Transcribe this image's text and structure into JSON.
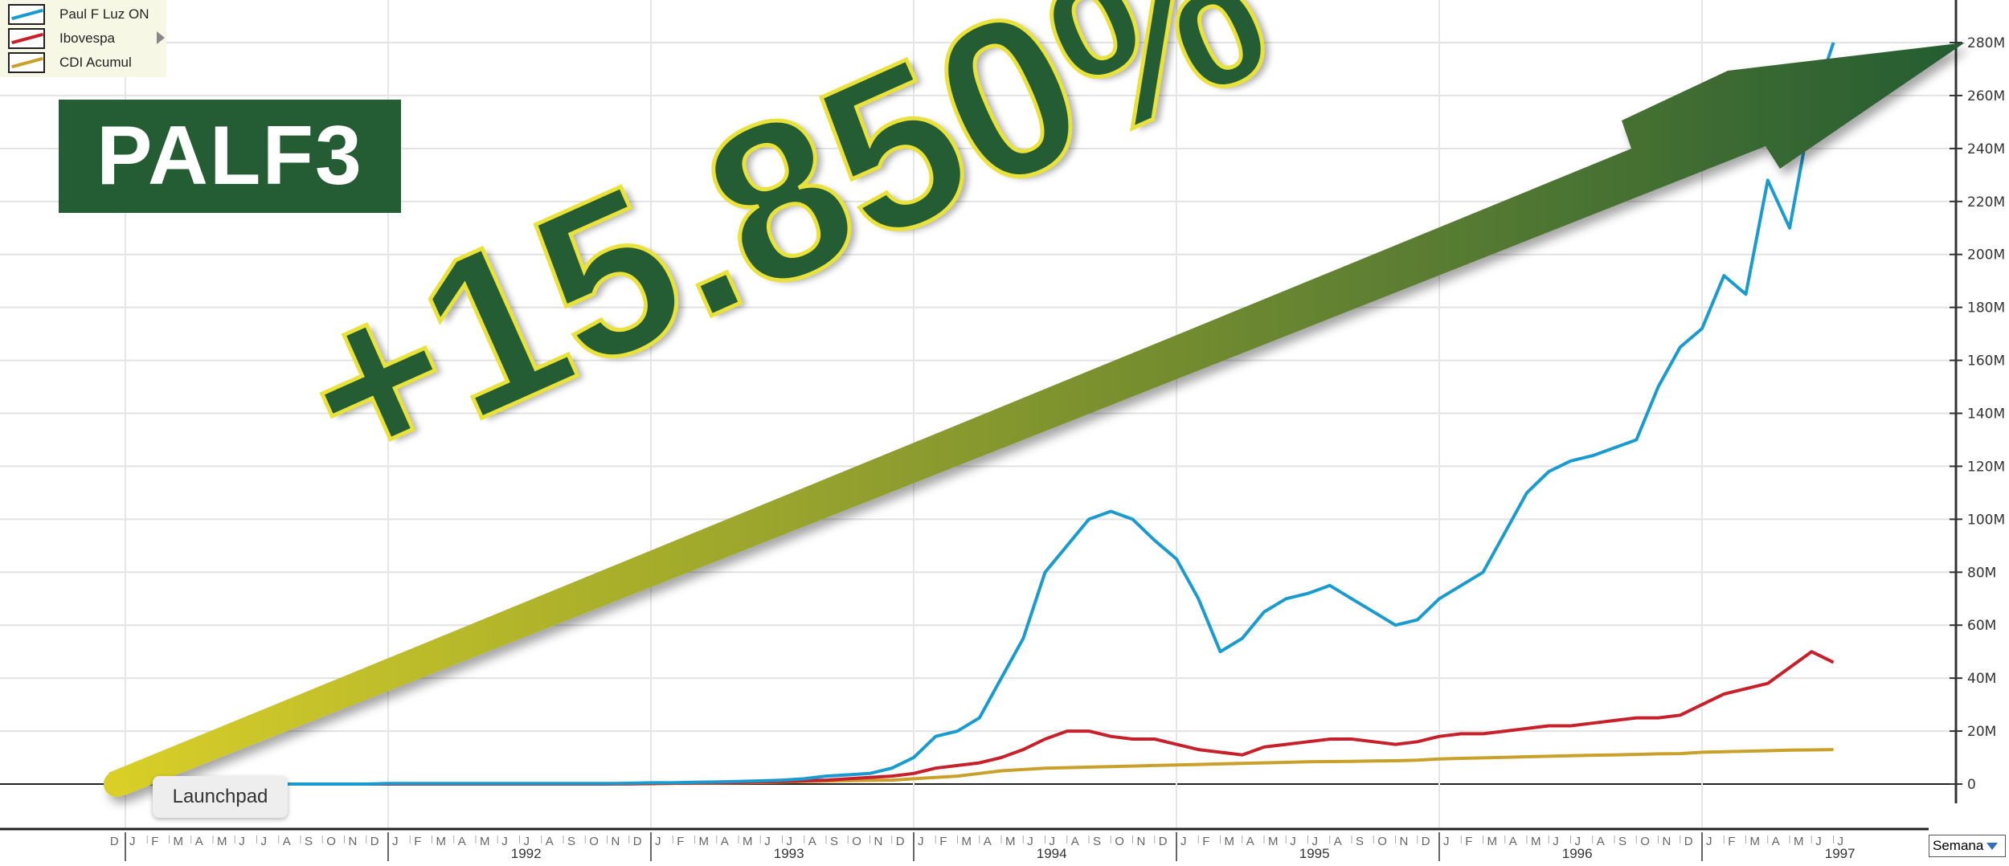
{
  "badge": {
    "ticker": "PALF3"
  },
  "annotation": {
    "gain_text": "+15.850%"
  },
  "tooltip": {
    "label": "Launchpad"
  },
  "period_select": {
    "value": "Semana"
  },
  "colors": {
    "paul_f_luz": "#1a9bd0",
    "ibovespa": "#c8202a",
    "cdi": "#c9a02a",
    "badge": "#245c33",
    "arrow_start": "#d9cf28",
    "arrow_end": "#245c33"
  },
  "chart_data": {
    "type": "line",
    "legend_position": "top-left",
    "grid": true,
    "yaxis": {
      "position": "right",
      "ylim": [
        0,
        290000000
      ],
      "ticks": [
        0,
        20000000,
        40000000,
        60000000,
        80000000,
        100000000,
        120000000,
        140000000,
        160000000,
        180000000,
        200000000,
        220000000,
        240000000,
        260000000,
        280000000
      ],
      "tick_labels": [
        "0",
        "20M",
        "40M",
        "60M",
        "80M",
        "100M",
        "120M",
        "140M",
        "160M",
        "180M",
        "200M",
        "220M",
        "240M",
        "260M",
        "280M"
      ]
    },
    "xaxis": {
      "month_labels": [
        "J",
        "F",
        "M",
        "A",
        "M",
        "J",
        "J",
        "A",
        "S",
        "O",
        "N",
        "D"
      ],
      "first_label": "D",
      "years": [
        "1992",
        "1993",
        "1994",
        "1995",
        "1996",
        "1997"
      ]
    },
    "start_month": "1991-01",
    "end_month": "1997-07",
    "series": [
      {
        "name": "Paul F Luz ON",
        "color_key": "paul_f_luz",
        "unit": "M",
        "values": [
          0,
          0,
          0,
          0,
          0,
          0,
          0,
          0,
          0,
          0,
          0,
          0,
          0.2,
          0.2,
          0.2,
          0.2,
          0.2,
          0.2,
          0.2,
          0.2,
          0.2,
          0.2,
          0.2,
          0.3,
          0.5,
          0.5,
          0.7,
          0.8,
          1,
          1.2,
          1.5,
          2,
          3,
          3.5,
          4,
          6,
          10,
          18,
          20,
          25,
          40,
          55,
          80,
          90,
          100,
          103,
          100,
          92,
          85,
          70,
          50,
          55,
          65,
          70,
          72,
          75,
          70,
          65,
          60,
          62,
          70,
          75,
          80,
          95,
          110,
          118,
          122,
          124,
          127,
          130,
          150,
          165,
          172,
          192,
          185,
          228,
          210,
          255,
          280
        ]
      },
      {
        "name": "Ibovespa",
        "color_key": "ibovespa",
        "unit": "M",
        "values": [
          0,
          0,
          0,
          0,
          0,
          0,
          0,
          0,
          0,
          0,
          0,
          0,
          0,
          0,
          0,
          0,
          0,
          0,
          0,
          0,
          0,
          0,
          0,
          0.1,
          0.2,
          0.3,
          0.4,
          0.5,
          0.6,
          0.8,
          1,
          1.2,
          1.5,
          2,
          2.5,
          3,
          4,
          6,
          7,
          8,
          10,
          13,
          17,
          20,
          20,
          18,
          17,
          17,
          15,
          13,
          12,
          11,
          14,
          15,
          16,
          17,
          17,
          16,
          15,
          16,
          18,
          19,
          19,
          20,
          21,
          22,
          22,
          23,
          24,
          25,
          25,
          26,
          30,
          34,
          36,
          38,
          44,
          50,
          46
        ]
      },
      {
        "name": "CDI Acumul",
        "color_key": "cdi",
        "unit": "M",
        "values": [
          0,
          0,
          0,
          0,
          0,
          0,
          0,
          0,
          0,
          0,
          0,
          0,
          0,
          0,
          0,
          0,
          0,
          0,
          0,
          0,
          0,
          0,
          0,
          0.1,
          0.1,
          0.2,
          0.3,
          0.4,
          0.5,
          0.6,
          0.8,
          1,
          1.1,
          1.3,
          1.4,
          1.5,
          2,
          2.5,
          3,
          4,
          5,
          5.5,
          6,
          6.2,
          6.4,
          6.6,
          6.8,
          7,
          7.2,
          7.4,
          7.6,
          7.8,
          8,
          8.2,
          8.4,
          8.5,
          8.6,
          8.7,
          8.8,
          9,
          9.5,
          9.7,
          9.9,
          10.1,
          10.3,
          10.5,
          10.7,
          10.9,
          11,
          11.2,
          11.4,
          11.5,
          12,
          12.2,
          12.4,
          12.6,
          12.8,
          12.9,
          13
        ]
      }
    ]
  }
}
